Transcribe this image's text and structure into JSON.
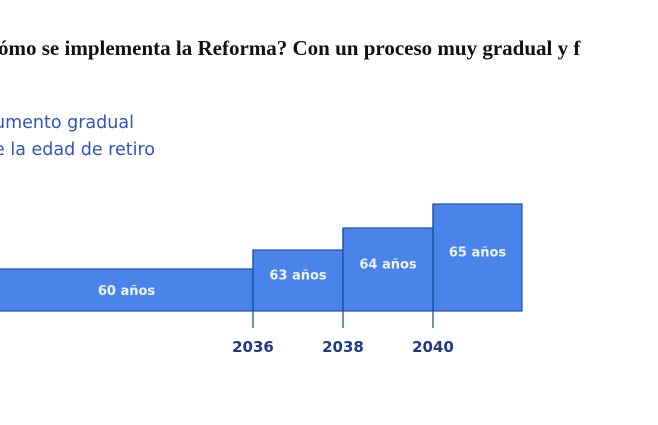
{
  "heading": "ómo se implementa la Reforma? Con un proceso muy gradual y f",
  "chart_data": {
    "type": "bar",
    "title_lines": [
      "umento gradual",
      "e la edad de retiro"
    ],
    "categories": [
      "",
      "2036",
      "2038",
      "2040"
    ],
    "values": [
      60,
      63,
      64,
      65
    ],
    "value_labels": [
      "60 años",
      "63 años",
      "64 años",
      "65 años"
    ],
    "tick_labels": [
      "2036",
      "2038",
      "2040"
    ],
    "bar_color": "#4a84ea",
    "edge_color": "#1e4fa8",
    "year_color": "#1d3a85",
    "title_color": "#2f55b8"
  }
}
